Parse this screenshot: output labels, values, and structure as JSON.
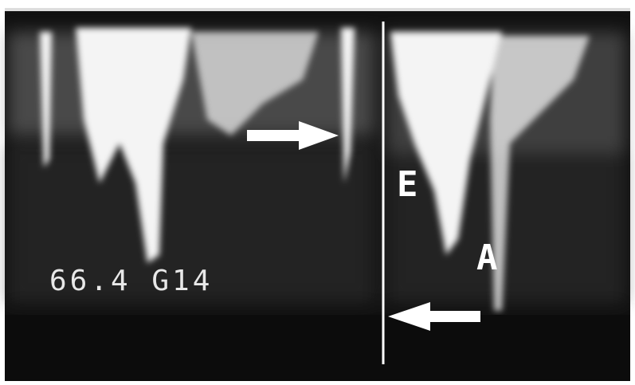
{
  "overlay": {
    "scale_text": "66.4 G14",
    "e_label": "E",
    "a_label": "A"
  }
}
